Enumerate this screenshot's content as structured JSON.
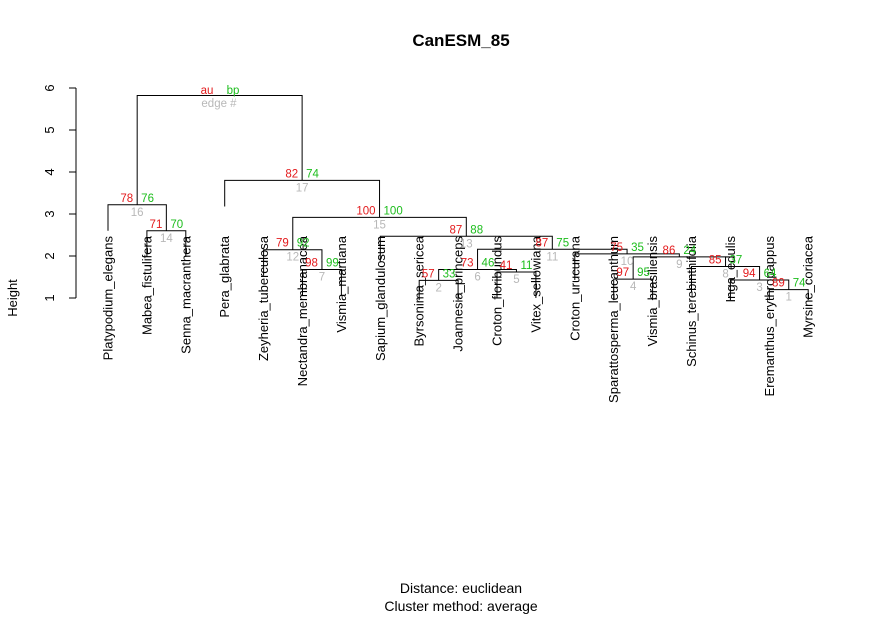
{
  "chart_data": {
    "type": "dendrogram",
    "title": "CanESM_85",
    "ylabel": "Height",
    "ylim": [
      1,
      6
    ],
    "yticks": [
      1,
      2,
      3,
      4,
      5,
      6
    ],
    "footer": [
      "Distance:  euclidean",
      "Cluster method: average"
    ],
    "legend": {
      "au": "au",
      "bp": "bp",
      "edge": "edge #"
    },
    "leaves": [
      "Platypodium_elegans",
      "Mabea_fistulifera",
      "Senna_macranthera",
      "Pera_glabrata",
      "Zeyheria_tuberculosa",
      "Nectandra_membranacea",
      "Vismia_martiana",
      "Sapium_glandulosum",
      "Byrsonima_sericea",
      "Joannesia_princeps",
      "Croton_floribundus",
      "Vitex_sellowiana",
      "Croton_urucurana",
      "Sparattosperma_leucanthum",
      "Vismia_brasiliensis",
      "Schinus_terebinthifolia",
      "Inga_edulis",
      "Eremanthus_erythropappus",
      "Myrsine_coriacea"
    ],
    "merges": [
      {
        "edge": 1,
        "left": "L19",
        "right": "L18",
        "height": 1.2,
        "au": 89,
        "bp": 74
      },
      {
        "edge": 2,
        "left": "L9",
        "right": "L10",
        "height": 1.42,
        "au": 57,
        "bp": 33
      },
      {
        "edge": 3,
        "left": "L17",
        "right": "E1",
        "height": 1.43,
        "au": 94,
        "bp": 64
      },
      {
        "edge": 4,
        "left": "L14",
        "right": "L15",
        "height": 1.45,
        "au": 97,
        "bp": 95
      },
      {
        "edge": 5,
        "left": "L11",
        "right": "L12",
        "height": 1.62,
        "au": 41,
        "bp": 11
      },
      {
        "edge": 6,
        "left": "E2",
        "right": "E5",
        "height": 1.68,
        "au": 73,
        "bp": 46
      },
      {
        "edge": 7,
        "left": "L6",
        "right": "L7",
        "height": 1.68,
        "au": 98,
        "bp": 99
      },
      {
        "edge": 8,
        "left": "L16",
        "right": "E3",
        "height": 1.75,
        "au": 85,
        "bp": 37
      },
      {
        "edge": 9,
        "left": "E4",
        "right": "E8",
        "height": 1.98,
        "au": 86,
        "bp": 24
      },
      {
        "edge": 10,
        "left": "L13",
        "right": "E9",
        "height": 2.05,
        "au": 75,
        "bp": 35
      },
      {
        "edge": 11,
        "left": "E6",
        "right": "E10",
        "height": 2.16,
        "au": 87,
        "bp": 75
      },
      {
        "edge": 12,
        "left": "L5",
        "right": "E7",
        "height": 2.15,
        "au": 79,
        "bp": 92
      },
      {
        "edge": 13,
        "left": "L8",
        "right": "E11",
        "height": 2.47,
        "au": 87,
        "bp": 88
      },
      {
        "edge": 14,
        "left": "L2",
        "right": "L3",
        "height": 2.6,
        "au": 71,
        "bp": 70
      },
      {
        "edge": 15,
        "left": "E12",
        "right": "E13",
        "height": 2.92,
        "au": 100,
        "bp": 100
      },
      {
        "edge": 16,
        "left": "L1",
        "right": "E14",
        "height": 3.22,
        "au": 78,
        "bp": 76
      },
      {
        "edge": 17,
        "left": "L4",
        "right": "E15",
        "height": 3.8,
        "au": 82,
        "bp": 74
      },
      {
        "edge": 18,
        "left": "E16",
        "right": "E17",
        "height": 5.82,
        "au": "",
        "bp": ""
      }
    ]
  }
}
